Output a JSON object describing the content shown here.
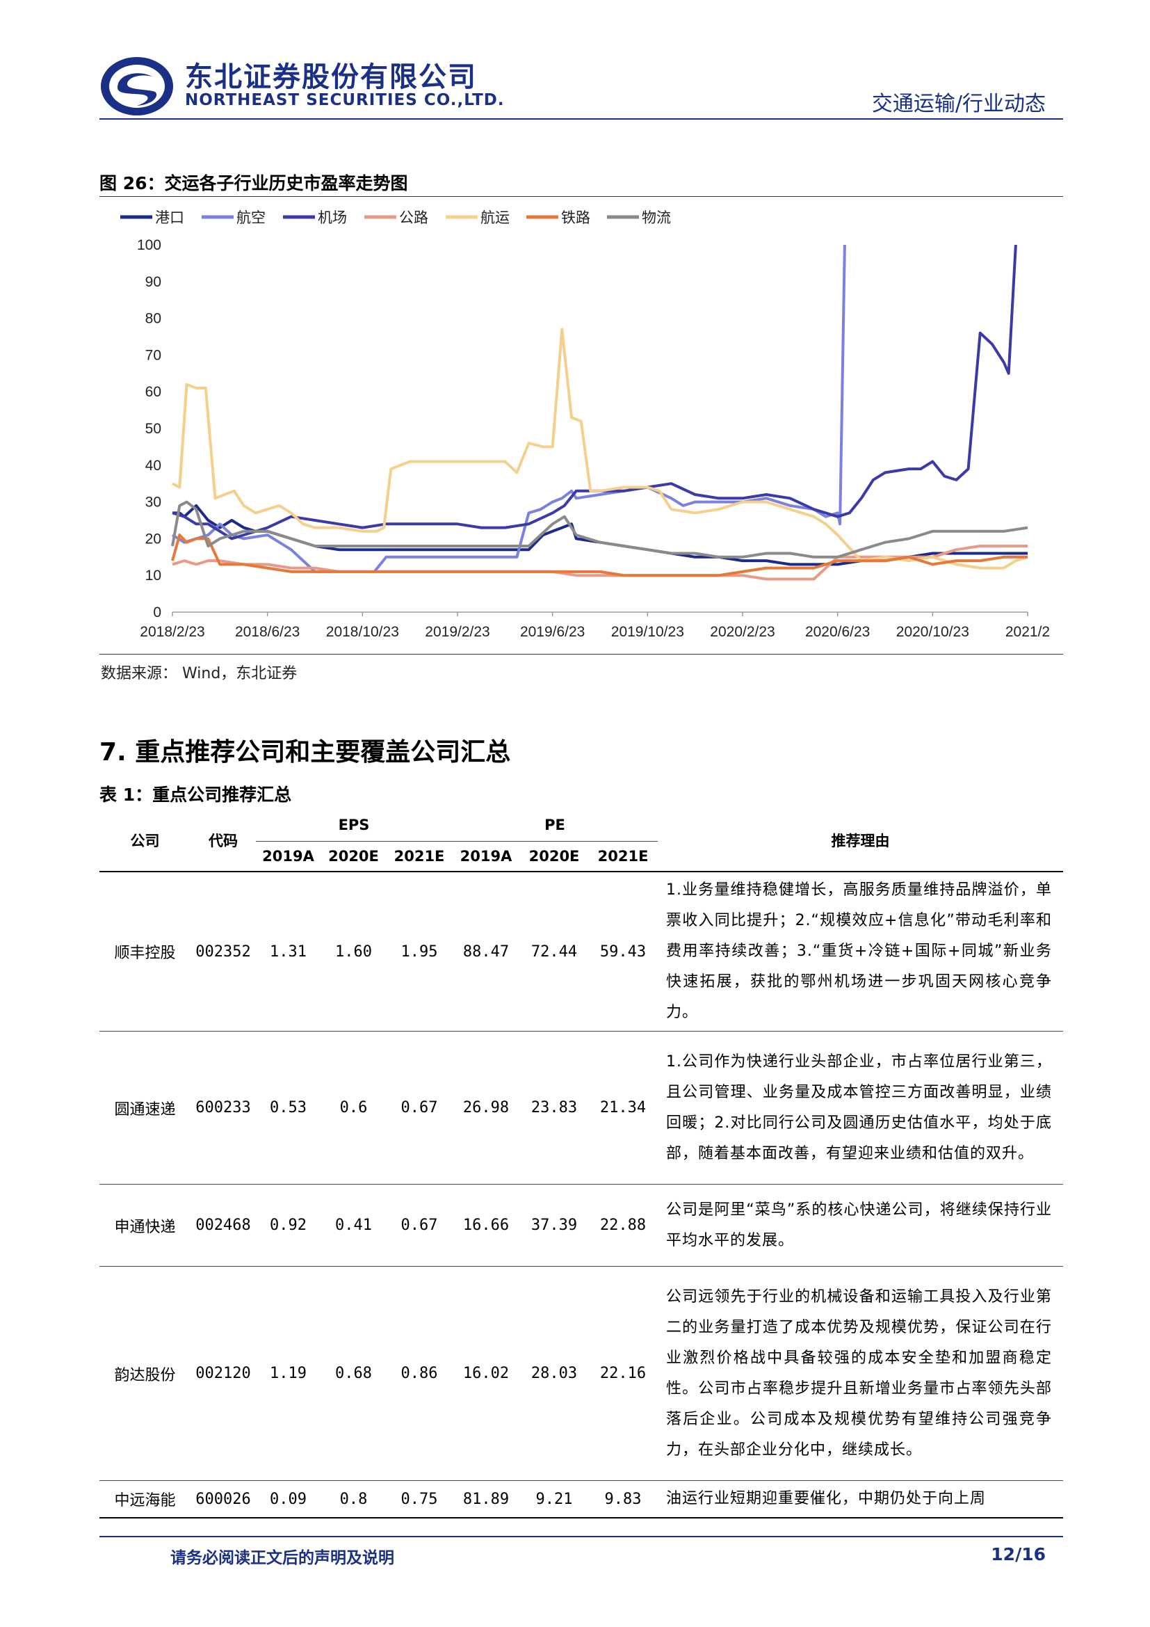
{
  "header": {
    "brand_cn": "东北证券股份有限公司",
    "brand_en": "NORTHEAST SECURITIES CO.,LTD.",
    "section": "交通运输/行业动态",
    "brand_color": "#1a2f86"
  },
  "figure": {
    "title": "图 26：交运各子行业历史市盈率走势图",
    "source": "数据来源： Wind，东北证券"
  },
  "chart_data": {
    "type": "line",
    "title": "",
    "xlabel": "",
    "ylabel": "",
    "ylim": [
      0,
      100
    ],
    "yticks": [
      0,
      10,
      20,
      30,
      40,
      50,
      60,
      70,
      80,
      90,
      100
    ],
    "xlim": [
      "2018-02-23",
      "2021-02-23"
    ],
    "xtick_labels": [
      "2018/2/23",
      "2018/6/23",
      "2018/10/23",
      "2019/2/23",
      "2019/6/23",
      "2019/10/23",
      "2020/2/23",
      "2020/6/23",
      "2020/10/23",
      "2021/2"
    ],
    "xtick_months": [
      0,
      4,
      8,
      12,
      16,
      20,
      24,
      28,
      32,
      36
    ],
    "legend_position": "top",
    "grid": false,
    "series": [
      {
        "name": "港口",
        "color": "#1c2a8a",
        "x": [
          0,
          0.3,
          0.5,
          1,
          1.5,
          2,
          2.5,
          3,
          3.5,
          4,
          5,
          6,
          7,
          8,
          9,
          10,
          11,
          12,
          13,
          14,
          15,
          15.6,
          16,
          16.4,
          16.8,
          17,
          18,
          19,
          20,
          21,
          22,
          23,
          24,
          25,
          26,
          27,
          28,
          29,
          30,
          31,
          32,
          33,
          34,
          35,
          36
        ],
        "y": [
          27,
          27,
          26,
          29,
          25,
          23,
          25,
          23,
          22,
          22,
          20,
          18,
          17,
          17,
          17,
          17,
          17,
          17,
          17,
          17,
          17,
          21,
          22,
          23,
          24,
          20,
          19,
          18,
          17,
          16,
          15,
          15,
          14,
          14,
          13,
          13,
          13,
          14,
          14,
          15,
          16,
          16,
          16,
          16,
          16
        ]
      },
      {
        "name": "航空",
        "color": "#7a82e0",
        "x": [
          0,
          0.5,
          1,
          1.5,
          2,
          2.5,
          3,
          4,
          5,
          6,
          7,
          8,
          8.5,
          9,
          10,
          11,
          12,
          13,
          14,
          14.5,
          15,
          15.5,
          16,
          16.4,
          16.8,
          17,
          18,
          19,
          20,
          21,
          21.5,
          22,
          23,
          24,
          25,
          26,
          27,
          27.5,
          28,
          28.1,
          28.3
        ],
        "y": [
          21,
          19,
          20,
          21,
          24,
          21,
          20,
          21,
          17,
          11,
          11,
          11,
          11,
          15,
          15,
          15,
          15,
          15,
          15,
          15,
          27,
          28,
          30,
          31,
          33,
          31,
          32,
          33,
          34,
          31,
          29,
          30,
          30,
          30,
          31,
          29,
          28,
          26,
          27,
          24,
          100
        ]
      },
      {
        "name": "机场",
        "color": "#3a3aa8",
        "x": [
          0,
          0.5,
          1,
          1.5,
          2,
          2.5,
          3,
          4,
          5,
          6,
          7,
          8,
          9,
          10,
          11,
          12,
          13,
          14,
          15,
          16,
          16.5,
          17,
          18,
          19,
          20,
          21,
          22,
          23,
          24,
          25,
          26,
          27,
          28,
          28.5,
          29,
          29.5,
          30,
          31,
          31.5,
          32,
          32.5,
          33,
          33.5,
          34,
          34.5,
          35,
          35.2,
          35.5
        ],
        "y": [
          27,
          26,
          24,
          24,
          22,
          20,
          21,
          23,
          26,
          25,
          24,
          23,
          24,
          24,
          24,
          24,
          23,
          23,
          24,
          27,
          29,
          33,
          33,
          33,
          34,
          35,
          32,
          31,
          31,
          32,
          31,
          28,
          26,
          27,
          31,
          36,
          38,
          39,
          39,
          41,
          37,
          36,
          39,
          76,
          73,
          68,
          65,
          100
        ]
      },
      {
        "name": "公路",
        "color": "#e89a88",
        "x": [
          0,
          0.5,
          1,
          1.5,
          2,
          3,
          4,
          5,
          6,
          7,
          8,
          9,
          10,
          11,
          12,
          13,
          14,
          15,
          16,
          17,
          18,
          19,
          20,
          21,
          22,
          23,
          24,
          25,
          26,
          27,
          28,
          29,
          30,
          31,
          32,
          33,
          34,
          35,
          36
        ],
        "y": [
          13,
          14,
          13,
          14,
          14,
          13,
          13,
          12,
          12,
          11,
          11,
          11,
          11,
          11,
          11,
          11,
          11,
          11,
          11,
          10,
          10,
          10,
          10,
          10,
          10,
          10,
          10,
          9,
          9,
          9,
          15,
          15,
          15,
          15,
          15,
          17,
          18,
          18,
          18
        ]
      },
      {
        "name": "航运",
        "color": "#f4d08c",
        "x": [
          0,
          0.3,
          0.6,
          1,
          1.4,
          1.8,
          2.2,
          2.6,
          3,
          3.5,
          4,
          4.5,
          5,
          5.5,
          6,
          7,
          8,
          8.6,
          8.9,
          9.2,
          10,
          11,
          12,
          13,
          14,
          14.5,
          15,
          15.6,
          16,
          16.4,
          16.8,
          17.2,
          17.6,
          18,
          19,
          20,
          20.5,
          21,
          22,
          23,
          24,
          25,
          26,
          27,
          27.5,
          28,
          29,
          30,
          31,
          32,
          33,
          34,
          35,
          35.5,
          36
        ],
        "y": [
          35,
          34,
          62,
          61,
          61,
          31,
          32,
          33,
          29,
          27,
          28,
          29,
          27,
          24,
          23,
          23,
          22,
          22,
          23,
          39,
          41,
          41,
          41,
          41,
          41,
          38,
          46,
          45,
          45,
          77,
          53,
          52,
          33,
          33,
          34,
          34,
          33,
          28,
          27,
          28,
          30,
          30,
          28,
          26,
          24,
          21,
          14,
          15,
          14,
          15,
          13,
          12,
          12,
          14,
          15
        ]
      },
      {
        "name": "铁路",
        "color": "#e6783a",
        "x": [
          0,
          0.3,
          0.6,
          1,
          1.5,
          2,
          3,
          4,
          5,
          6,
          7,
          8,
          9,
          10,
          11,
          12,
          13,
          14,
          15,
          16,
          17,
          18,
          19,
          20,
          21,
          22,
          23,
          24,
          25,
          26,
          27,
          28,
          29,
          30,
          31,
          32,
          33,
          34,
          35,
          36
        ],
        "y": [
          14,
          21,
          19,
          20,
          20,
          13,
          13,
          12,
          11,
          11,
          11,
          11,
          11,
          11,
          11,
          11,
          11,
          11,
          11,
          11,
          11,
          11,
          10,
          10,
          10,
          10,
          10,
          11,
          12,
          12,
          12,
          14,
          14,
          14,
          15,
          13,
          14,
          14,
          15,
          15
        ]
      },
      {
        "name": "物流",
        "color": "#8a8a8a",
        "x": [
          0,
          0.3,
          0.6,
          1,
          1.5,
          2,
          2.5,
          3,
          4,
          5,
          6,
          7,
          8,
          9,
          10,
          11,
          12,
          13,
          14,
          15,
          15.5,
          16,
          16.5,
          17,
          18,
          19,
          20,
          21,
          22,
          23,
          24,
          25,
          26,
          27,
          28,
          29,
          30,
          31,
          32,
          33,
          34,
          35,
          36
        ],
        "y": [
          18,
          29,
          30,
          28,
          18,
          20,
          21,
          22,
          22,
          20,
          18,
          18,
          18,
          18,
          18,
          18,
          18,
          18,
          18,
          18,
          21,
          24,
          26,
          21,
          19,
          18,
          17,
          16,
          16,
          15,
          15,
          16,
          16,
          15,
          15,
          17,
          19,
          20,
          22,
          22,
          22,
          22,
          23
        ]
      }
    ]
  },
  "section": {
    "title": "7.  重点推荐公司和主要覆盖公司汇总",
    "table_title": "表 1：重点公司推荐汇总"
  },
  "table": {
    "headers": {
      "company": "公司",
      "code": "代码",
      "eps": "EPS",
      "pe": "PE",
      "reason": "推荐理由",
      "eps_years": [
        "2019A",
        "2020E",
        "2021E"
      ],
      "pe_years": [
        "2019A",
        "2020E",
        "2021E"
      ]
    },
    "rows": [
      {
        "company": "顺丰控股",
        "code": "002352",
        "eps": [
          "1.31",
          "1.60",
          "1.95"
        ],
        "pe": [
          "88.47",
          "72.44",
          "59.43"
        ],
        "reason": "1.业务量维持稳健增长，高服务质量维持品牌溢价，单票收入同比提升；2.“规模效应+信息化”带动毛利率和费用率持续改善；3.“重货+冷链+国际+同城”新业务快速拓展，获批的鄂州机场进一步巩固天网核心竞争力。"
      },
      {
        "company": "圆通速递",
        "code": "600233",
        "eps": [
          "0.53",
          "0.6",
          "0.67"
        ],
        "pe": [
          "26.98",
          "23.83",
          "21.34"
        ],
        "reason": "1.公司作为快递行业头部企业，市占率位居行业第三，且公司管理、业务量及成本管控三方面改善明显，业绩回暖；2.对比同行公司及圆通历史估值水平，均处于底部，随着基本面改善，有望迎来业绩和估值的双升。"
      },
      {
        "company": "申通快递",
        "code": "002468",
        "eps": [
          "0.92",
          "0.41",
          "0.67"
        ],
        "pe": [
          "16.66",
          "37.39",
          "22.88"
        ],
        "reason": "公司是阿里“菜鸟”系的核心快递公司，将继续保持行业平均水平的发展。"
      },
      {
        "company": "韵达股份",
        "code": "002120",
        "eps": [
          "1.19",
          "0.68",
          "0.86"
        ],
        "pe": [
          "16.02",
          "28.03",
          "22.16"
        ],
        "reason": "公司远领先于行业的机械设备和运输工具投入及行业第二的业务量打造了成本优势及规模优势，保证公司在行业激烈价格战中具备较强的成本安全垫和加盟商稳定性。公司市占率稳步提升且新增业务量市占率领先头部落后企业。公司成本及规模优势有望维持公司强竞争力，在头部企业分化中，继续成长。"
      },
      {
        "company": "中远海能",
        "code": "600026",
        "eps": [
          "0.09",
          "0.8",
          "0.75"
        ],
        "pe": [
          "81.89",
          "9.21",
          "9.83"
        ],
        "reason": "油运行业短期迎重要催化，中期仍处于向上周"
      }
    ]
  },
  "footer": {
    "note": "请务必阅读正文后的声明及说明",
    "page": "12/16"
  }
}
